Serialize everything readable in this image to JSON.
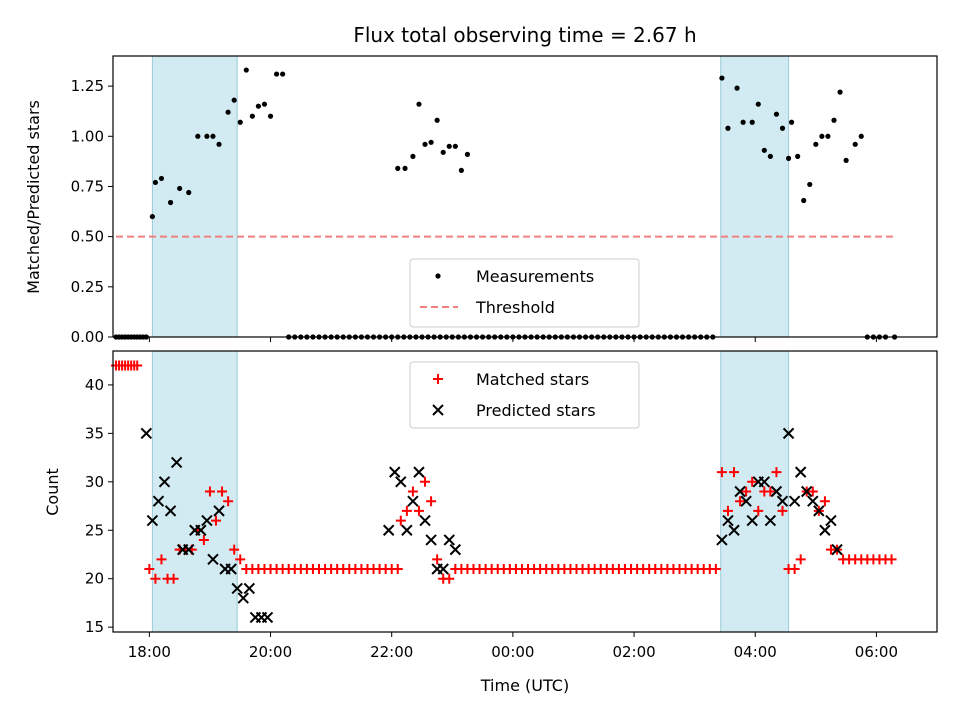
{
  "chart_data": [
    {
      "type": "scatter",
      "title": "Flux total observing time = 2.67 h",
      "xlabel": "",
      "ylabel": "Matched/Predicted stars",
      "xlim": [
        -6.6,
        7.0
      ],
      "ylim": [
        0,
        1.4
      ],
      "yticks": [
        "0.00",
        "0.25",
        "0.50",
        "0.75",
        "1.00",
        "1.25"
      ],
      "ytick_values": [
        0,
        0.25,
        0.5,
        0.75,
        1.0,
        1.25
      ],
      "xtick_values": [
        -6,
        -4,
        -2,
        0,
        2,
        4,
        6
      ],
      "shaded_regions": [
        [
          -5.95,
          -4.55
        ],
        [
          3.43,
          4.55
        ]
      ],
      "legend": [
        "Measurements",
        "Threshold"
      ],
      "legend_position": "lower-center",
      "series": [
        {
          "name": "Measurements",
          "color": "#000000",
          "marker": "dot",
          "x": [
            -6.55,
            -6.5,
            -6.45,
            -6.4,
            -6.35,
            -6.3,
            -6.25,
            -6.2,
            -6.15,
            -6.1,
            -6.05,
            -5.95,
            -5.9,
            -5.8,
            -5.65,
            -5.5,
            -5.35,
            -5.2,
            -5.05,
            -4.95,
            -4.85,
            -4.7,
            -4.6,
            -4.5,
            -4.4,
            -4.3,
            -4.2,
            -4.1,
            -4.0,
            -3.9,
            -3.8,
            -3.7,
            -3.6,
            -3.5,
            -3.4,
            -3.3,
            -3.2,
            -3.1,
            -3.0,
            -2.9,
            -2.8,
            -2.7,
            -2.6,
            -2.5,
            -2.4,
            -2.3,
            -2.2,
            -2.1,
            -2.0,
            -1.9,
            -1.8,
            -1.7,
            -1.6,
            -1.5,
            -1.4,
            -1.3,
            -1.2,
            -1.1,
            -1.0,
            -0.9,
            -0.8,
            -0.7,
            -0.6,
            -0.5,
            -0.4,
            -0.3,
            -0.2,
            -0.1,
            0.0,
            0.1,
            0.2,
            0.3,
            0.4,
            0.5,
            0.6,
            0.7,
            0.8,
            0.9,
            1.0,
            1.1,
            1.2,
            1.3,
            1.4,
            1.5,
            1.6,
            1.7,
            1.8,
            1.9,
            2.0,
            2.1,
            2.2,
            2.3,
            2.4,
            2.5,
            2.6,
            2.7,
            2.8,
            2.9,
            3.0,
            3.1,
            3.2,
            3.3,
            -1.9,
            -1.78,
            -1.65,
            -1.55,
            -1.45,
            -1.35,
            -1.25,
            -1.15,
            -1.05,
            -0.95,
            -0.85,
            -0.75,
            3.45,
            3.55,
            3.7,
            3.8,
            3.95,
            4.05,
            4.15,
            4.25,
            4.35,
            4.45,
            4.55,
            4.6,
            4.7,
            4.8,
            4.9,
            5.0,
            5.1,
            5.2,
            5.3,
            5.4,
            5.5,
            5.65,
            5.75,
            5.85,
            5.95,
            6.05,
            6.15,
            6.3
          ],
          "y": [
            0,
            0,
            0,
            0,
            0,
            0,
            0,
            0,
            0,
            0,
            0,
            0.6,
            0.77,
            0.79,
            0.67,
            0.74,
            0.72,
            1.0,
            1.0,
            1.0,
            0.96,
            1.12,
            1.18,
            1.07,
            1.33,
            1.1,
            1.15,
            1.16,
            1.1,
            1.31,
            1.31,
            0,
            0,
            0,
            0,
            0,
            0,
            0,
            0,
            0,
            0,
            0,
            0,
            0,
            0,
            0,
            0,
            0,
            0,
            0,
            0,
            0,
            0,
            0,
            0,
            0,
            0,
            0,
            0,
            0,
            0,
            0,
            0,
            0,
            0,
            0,
            0,
            0,
            0,
            0,
            0,
            0,
            0,
            0,
            0,
            0,
            0,
            0,
            0,
            0,
            0,
            0,
            0,
            0,
            0,
            0,
            0,
            0,
            0,
            0,
            0,
            0,
            0,
            0,
            0,
            0,
            0,
            0,
            0,
            0,
            0,
            0,
            0.84,
            0.84,
            0.9,
            1.16,
            0.96,
            0.97,
            1.08,
            0.92,
            0.95,
            0.95,
            0.83,
            0.91,
            1.29,
            1.04,
            1.24,
            1.07,
            1.07,
            1.16,
            0.93,
            0.9,
            1.11,
            1.04,
            0.89,
            1.07,
            0.9,
            0.68,
            0.76,
            0.96,
            1.0,
            1.0,
            1.08,
            1.22,
            0.88,
            0.96,
            1.0,
            0,
            0,
            0,
            0,
            0
          ]
        },
        {
          "name": "Threshold",
          "color": "#f08080",
          "style": "dashed",
          "x": [
            -6.55,
            6.3
          ],
          "y": [
            0.5,
            0.5
          ]
        }
      ]
    },
    {
      "type": "scatter",
      "title": "",
      "xlabel": "Time (UTC)",
      "ylabel": "Count",
      "xlim": [
        -6.6,
        7.0
      ],
      "ylim": [
        14.5,
        43.5
      ],
      "yticks": [
        "15",
        "20",
        "25",
        "30",
        "35",
        "40"
      ],
      "ytick_values": [
        15,
        20,
        25,
        30,
        35,
        40
      ],
      "xticks": [
        "18:00",
        "20:00",
        "22:00",
        "00:00",
        "02:00",
        "04:00",
        "06:00"
      ],
      "xtick_values": [
        -6,
        -4,
        -2,
        0,
        2,
        4,
        6
      ],
      "shaded_regions": [
        [
          -5.95,
          -4.55
        ],
        [
          3.43,
          4.55
        ]
      ],
      "legend": [
        "Matched stars",
        "Predicted stars"
      ],
      "legend_position": "upper-center",
      "series": [
        {
          "name": "Matched stars",
          "color": "#ff0000",
          "marker": "plus",
          "x": [
            -6.55,
            -6.5,
            -6.45,
            -6.4,
            -6.35,
            -6.3,
            -6.25,
            -6.2,
            -6.0,
            -5.9,
            -5.8,
            -5.7,
            -5.6,
            -5.5,
            -5.4,
            -5.3,
            -5.2,
            -5.1,
            -5.0,
            -4.9,
            -4.8,
            -4.7,
            -4.6,
            -4.5,
            -4.4,
            -4.3,
            -4.2,
            -4.1,
            -4.0,
            -3.9,
            -3.8,
            -3.7,
            -3.6,
            -3.5,
            -3.4,
            -3.3,
            -3.2,
            -3.1,
            -3.0,
            -2.9,
            -2.8,
            -2.7,
            -2.6,
            -2.5,
            -2.4,
            -2.3,
            -2.2,
            -2.1,
            -2.0,
            -1.9,
            -1.85,
            -1.75,
            -1.65,
            -1.55,
            -1.45,
            -1.35,
            -1.25,
            -1.15,
            -1.05,
            -0.95,
            -0.85,
            -0.75,
            -0.65,
            -0.55,
            -0.45,
            -0.35,
            -0.25,
            -0.15,
            -0.05,
            0.05,
            0.15,
            0.25,
            0.35,
            0.45,
            0.55,
            0.65,
            0.75,
            0.85,
            0.95,
            1.05,
            1.15,
            1.25,
            1.35,
            1.45,
            1.55,
            1.65,
            1.75,
            1.85,
            1.95,
            2.05,
            2.15,
            2.25,
            2.35,
            2.45,
            2.55,
            2.65,
            2.75,
            2.85,
            2.95,
            3.05,
            3.15,
            3.25,
            3.35,
            3.45,
            3.55,
            3.65,
            3.75,
            3.85,
            3.95,
            4.05,
            4.15,
            4.25,
            4.35,
            4.45,
            4.55,
            4.65,
            4.75,
            4.85,
            4.95,
            5.05,
            5.15,
            5.25,
            5.35,
            5.45,
            5.55,
            5.65,
            5.75,
            5.85,
            5.95,
            6.05,
            6.15,
            6.25
          ],
          "y": [
            42,
            42,
            42,
            42,
            42,
            42,
            42,
            42,
            21,
            20,
            22,
            20,
            20,
            23,
            23,
            23,
            25,
            24,
            29,
            26,
            29,
            28,
            23,
            22,
            21,
            21,
            21,
            21,
            21,
            21,
            21,
            21,
            21,
            21,
            21,
            21,
            21,
            21,
            21,
            21,
            21,
            21,
            21,
            21,
            21,
            21,
            21,
            21,
            21,
            21,
            26,
            27,
            29,
            27,
            30,
            28,
            22,
            20,
            20,
            21,
            21,
            21,
            21,
            21,
            21,
            21,
            21,
            21,
            21,
            21,
            21,
            21,
            21,
            21,
            21,
            21,
            21,
            21,
            21,
            21,
            21,
            21,
            21,
            21,
            21,
            21,
            21,
            21,
            21,
            21,
            21,
            21,
            21,
            21,
            21,
            21,
            21,
            21,
            21,
            21,
            21,
            21,
            21,
            31,
            27,
            31,
            28,
            29,
            30,
            27,
            29,
            29,
            31,
            27,
            21,
            21,
            22,
            29,
            29,
            27,
            28,
            23,
            23,
            22,
            22,
            22,
            22,
            22,
            22,
            22,
            22,
            22
          ]
        },
        {
          "name": "Predicted stars",
          "color": "#000000",
          "marker": "x",
          "x": [
            -6.05,
            -5.95,
            -5.85,
            -5.75,
            -5.65,
            -5.55,
            -5.45,
            -5.35,
            -5.25,
            -5.15,
            -5.05,
            -4.95,
            -4.85,
            -4.75,
            -4.65,
            -4.55,
            -4.45,
            -4.35,
            -4.25,
            -4.15,
            -4.05,
            -2.05,
            -1.95,
            -1.85,
            -1.75,
            -1.65,
            -1.55,
            -1.45,
            -1.35,
            -1.25,
            -1.15,
            -1.05,
            -0.95,
            3.45,
            3.55,
            3.65,
            3.75,
            3.85,
            3.95,
            4.05,
            4.15,
            4.25,
            4.35,
            4.45,
            4.55,
            4.65,
            4.75,
            4.85,
            4.95,
            5.05,
            5.15,
            5.25,
            5.35
          ],
          "y": [
            35,
            26,
            28,
            30,
            27,
            32,
            23,
            23,
            25,
            25,
            26,
            22,
            27,
            21,
            21,
            19,
            18,
            19,
            16,
            16,
            16,
            25,
            31,
            30,
            25,
            28,
            31,
            26,
            24,
            21,
            21,
            24,
            23,
            24,
            26,
            25,
            29,
            28,
            26,
            30,
            30,
            26,
            29,
            28,
            35,
            28,
            31,
            29,
            28,
            27,
            25,
            26,
            23
          ]
        }
      ]
    }
  ]
}
